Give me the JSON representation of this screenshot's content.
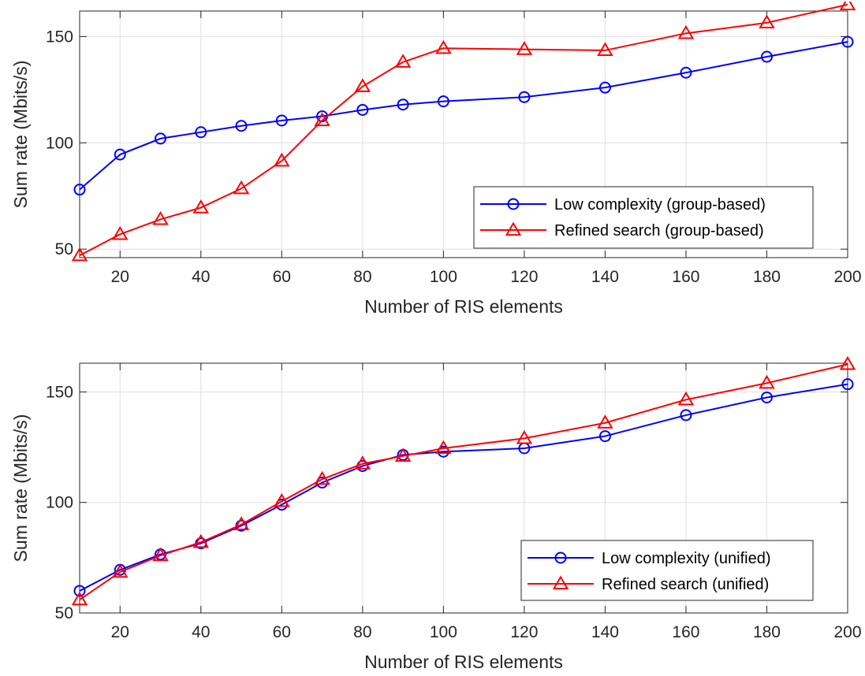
{
  "chart_data": [
    {
      "type": "line",
      "xlabel": "Number of RIS elements",
      "ylabel": "Sum rate (Mbits/s)",
      "x": [
        10,
        20,
        30,
        40,
        50,
        60,
        70,
        80,
        90,
        100,
        120,
        140,
        160,
        180,
        200
      ],
      "xticks": [
        20,
        40,
        60,
        80,
        100,
        120,
        140,
        160,
        180,
        200
      ],
      "yticks": [
        50,
        100,
        150
      ],
      "xlim": [
        10,
        200
      ],
      "ylim": [
        46,
        162
      ],
      "grid": true,
      "legend_position": "lower-right",
      "series": [
        {
          "name": "Low complexity (group-based)",
          "color": "#0000ff",
          "marker": "circle",
          "values": [
            78,
            94.5,
            102,
            105,
            108,
            110.5,
            112.5,
            115.5,
            118,
            119.5,
            121.5,
            126,
            133,
            140.5,
            147.5
          ]
        },
        {
          "name": "Refined search (group-based)",
          "color": "#ff0000",
          "marker": "triangle",
          "values": [
            47,
            57,
            64,
            69.5,
            78.5,
            91.5,
            110.5,
            126.5,
            138,
            144.5,
            144,
            143.5,
            151.5,
            156.5,
            165
          ]
        }
      ]
    },
    {
      "type": "line",
      "xlabel": "Number of RIS elements",
      "ylabel": "Sum rate (Mbits/s)",
      "x": [
        10,
        20,
        30,
        40,
        50,
        60,
        70,
        80,
        90,
        100,
        120,
        140,
        160,
        180,
        200
      ],
      "xticks": [
        20,
        40,
        60,
        80,
        100,
        120,
        140,
        160,
        180,
        200
      ],
      "yticks": [
        50,
        100,
        150
      ],
      "xlim": [
        10,
        200
      ],
      "ylim": [
        50,
        163
      ],
      "grid": true,
      "legend_position": "lower-right",
      "series": [
        {
          "name": "Low complexity (unified)",
          "color": "#0000ff",
          "marker": "circle",
          "values": [
            60,
            69.5,
            76.5,
            81.5,
            89.5,
            99,
            109,
            116.5,
            121.5,
            123,
            124.5,
            130,
            139.5,
            147.5,
            153.5
          ]
        },
        {
          "name": "Refined search (unified)",
          "color": "#ff0000",
          "marker": "triangle",
          "values": [
            56,
            68.5,
            76,
            82,
            90,
            100.5,
            110.5,
            117.5,
            121,
            124.5,
            129,
            136,
            146.5,
            154,
            162.5
          ]
        }
      ]
    }
  ]
}
